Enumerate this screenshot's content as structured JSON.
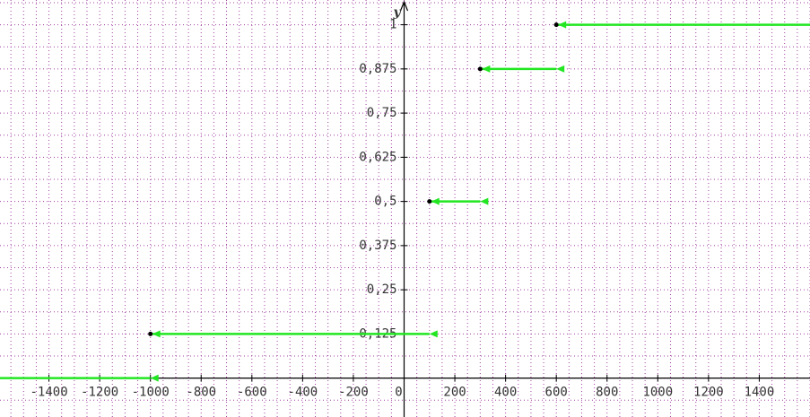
{
  "chart_data": {
    "type": "step",
    "y_label": "y",
    "color": "#22e622",
    "segments": [
      {
        "x0": -1600,
        "x1": -1000,
        "y": 0
      },
      {
        "x0": -1000,
        "x1": 100,
        "y": 0.125
      },
      {
        "x0": 100,
        "x1": 300,
        "y": 0.5
      },
      {
        "x0": 300,
        "x1": 600,
        "y": 0.875
      },
      {
        "x0": 600,
        "x1": 1600,
        "y": 1
      }
    ],
    "xlim": [
      -1600,
      1600
    ],
    "ylim": [
      -0.11,
      1.07
    ],
    "xticks": [
      -1400,
      -1200,
      -1000,
      -800,
      -600,
      -400,
      -200,
      0,
      200,
      400,
      600,
      800,
      1000,
      1200,
      1400
    ],
    "yticks": [
      {
        "value": 0.125,
        "label": "0,125"
      },
      {
        "value": 0.25,
        "label": "0,25"
      },
      {
        "value": 0.375,
        "label": "0,375"
      },
      {
        "value": 0.5,
        "label": "0,5"
      },
      {
        "value": 0.625,
        "label": "0,625"
      },
      {
        "value": 0.75,
        "label": "0,75"
      },
      {
        "value": 0.875,
        "label": "0,875"
      },
      1
    ],
    "grid": {
      "x_step": 50,
      "y_step": 0.0625,
      "color": "#a040a0"
    }
  }
}
